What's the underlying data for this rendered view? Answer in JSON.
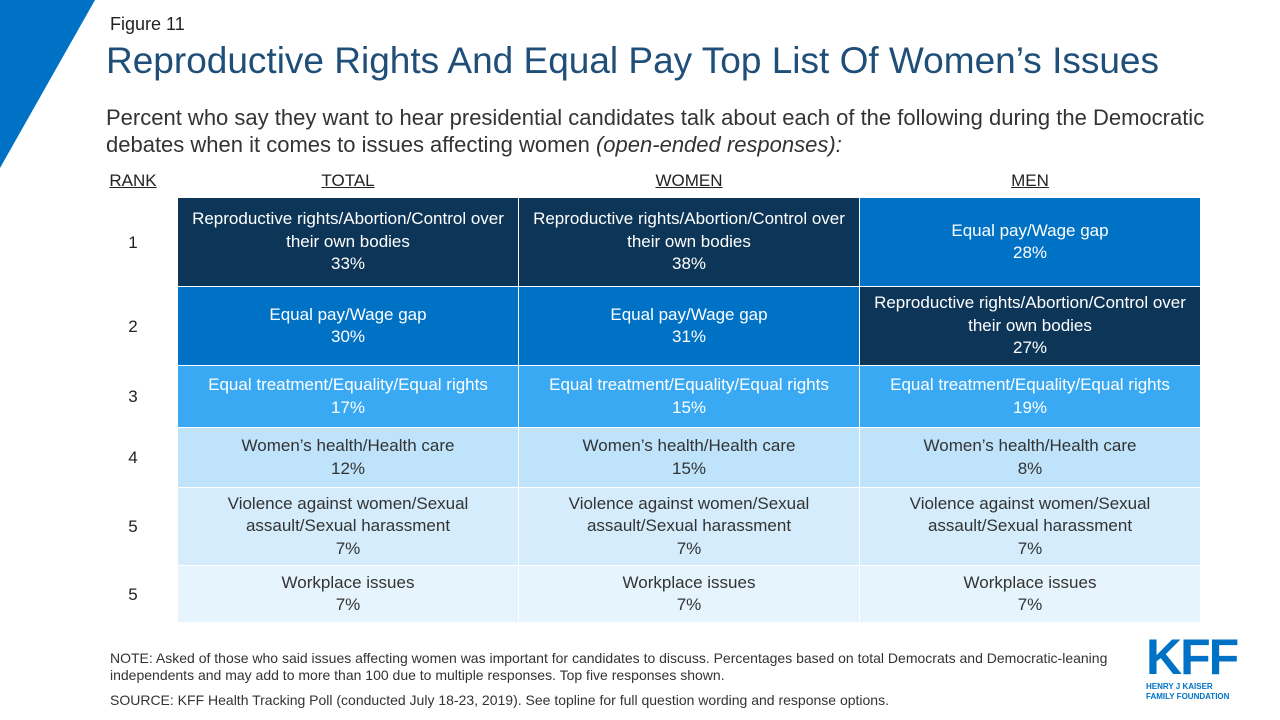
{
  "figure_label": "Figure 11",
  "title": "Reproductive Rights And Equal Pay Top List Of Women’s Issues",
  "subtitle_main": "Percent who say they want to hear presidential candidates talk about each of the following during the Democratic debates when it comes to issues affecting women ",
  "subtitle_italic": "(open-ended responses):",
  "colors": {
    "corner": "#0072c6",
    "rank1_topic": "#0d3557",
    "rank2_topic": "#0072c6",
    "rank3": "#39a9f3",
    "rank4": "#bee3fb",
    "rank5a": "#d4ecfb",
    "rank5b": "#e6f4fd"
  },
  "chart_data": {
    "type": "table",
    "columns": [
      "RANK",
      "TOTAL",
      "WOMEN",
      "MEN"
    ],
    "rows": [
      {
        "rank": "1",
        "total": {
          "label": "Reproductive rights/Abortion/Control over their own bodies",
          "value": "33%"
        },
        "women": {
          "label": "Reproductive rights/Abortion/Control over their own bodies",
          "value": "38%"
        },
        "men": {
          "label": "Equal pay/Wage gap",
          "value": "28%"
        }
      },
      {
        "rank": "2",
        "total": {
          "label": "Equal pay/Wage gap",
          "value": "30%"
        },
        "women": {
          "label": "Equal pay/Wage gap",
          "value": "31%"
        },
        "men": {
          "label": "Reproductive rights/Abortion/Control over their own bodies",
          "value": "27%"
        }
      },
      {
        "rank": "3",
        "total": {
          "label": "Equal treatment/Equality/Equal rights",
          "value": "17%"
        },
        "women": {
          "label": "Equal treatment/Equality/Equal rights",
          "value": "15%"
        },
        "men": {
          "label": "Equal treatment/Equality/Equal rights",
          "value": "19%"
        }
      },
      {
        "rank": "4",
        "total": {
          "label": "Women’s health/Health care",
          "value": "12%"
        },
        "women": {
          "label": "Women’s health/Health care",
          "value": "15%"
        },
        "men": {
          "label": "Women’s health/Health care",
          "value": "8%"
        }
      },
      {
        "rank": "5",
        "total": {
          "label": "Violence against women/Sexual assault/Sexual harassment",
          "value": "7%"
        },
        "women": {
          "label": "Violence against women/Sexual assault/Sexual harassment",
          "value": "7%"
        },
        "men": {
          "label": "Violence against women/Sexual assault/Sexual harassment",
          "value": "7%"
        }
      },
      {
        "rank": "5",
        "total": {
          "label": "Workplace issues",
          "value": "7%"
        },
        "women": {
          "label": "Workplace issues",
          "value": "7%"
        },
        "men": {
          "label": "Workplace issues",
          "value": "7%"
        }
      }
    ]
  },
  "note": "NOTE: Asked of those who said issues affecting women was important for candidates to discuss. Percentages based on total Democrats and Democratic-leaning independents and may add to more than 100 due to multiple responses. Top five responses shown.",
  "source": "SOURCE: KFF Health Tracking Poll (conducted July 18-23, 2019). See topline for full question wording and response options.",
  "logo": {
    "mark": "KFF",
    "line1": "HENRY J KAISER",
    "line2": "FAMILY FOUNDATION"
  }
}
